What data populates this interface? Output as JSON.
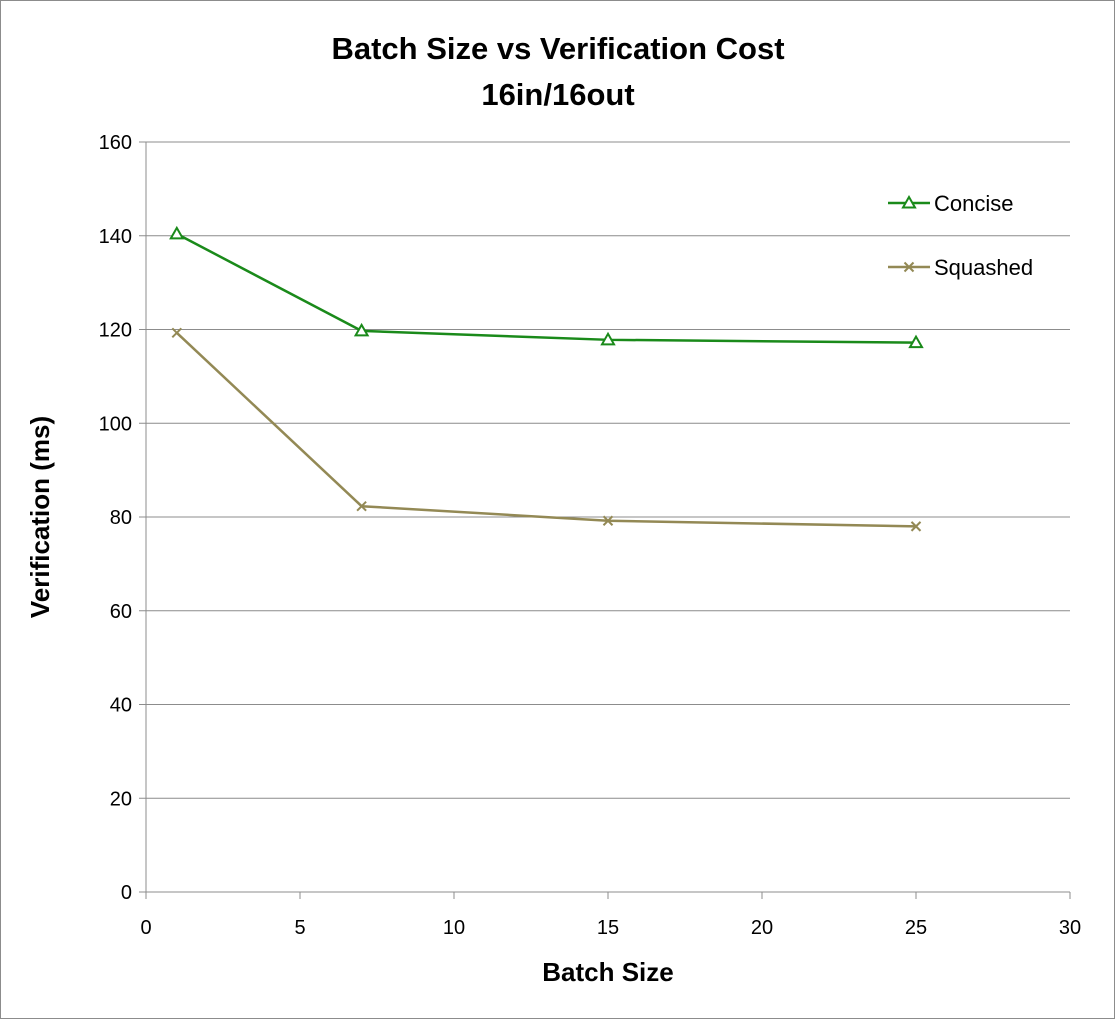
{
  "chart_data": {
    "type": "line",
    "title": "Batch Size vs Verification Cost",
    "subtitle": "16in/16out",
    "xlabel": "Batch Size",
    "ylabel": "Verification (ms)",
    "xlim": [
      0,
      30
    ],
    "ylim": [
      0,
      160
    ],
    "xticks": [
      0,
      5,
      10,
      15,
      20,
      25,
      30
    ],
    "yticks": [
      0,
      20,
      40,
      60,
      80,
      100,
      120,
      140,
      160
    ],
    "grid": "horizontal",
    "legend_position": "top-right",
    "series": [
      {
        "name": "Concise",
        "color": "#1a8a1a",
        "marker": "triangle",
        "x": [
          1,
          7,
          15,
          25
        ],
        "y": [
          140.4,
          119.7,
          117.8,
          117.2
        ]
      },
      {
        "name": "Squashed",
        "color": "#938955",
        "marker": "x",
        "x": [
          1,
          7,
          15,
          25
        ],
        "y": [
          119.3,
          82.3,
          79.2,
          78.0
        ]
      }
    ]
  }
}
